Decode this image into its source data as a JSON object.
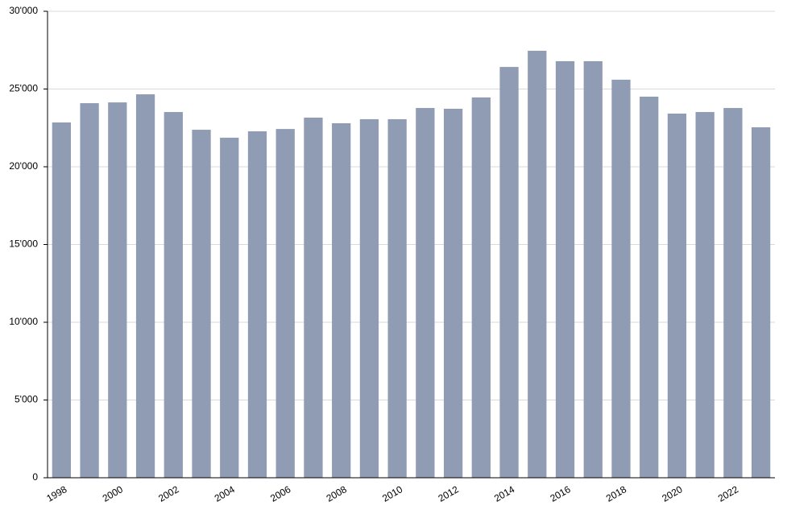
{
  "chart_data": {
    "type": "bar",
    "categories": [
      "1998",
      null,
      "2000",
      null,
      "2002",
      null,
      "2004",
      null,
      "2006",
      null,
      "2008",
      null,
      "2010",
      null,
      "2012",
      null,
      "2014",
      null,
      "2016",
      null,
      "2018",
      null,
      "2020",
      null,
      "2022",
      null
    ],
    "values": [
      22850,
      24090,
      24140,
      24660,
      23520,
      22380,
      21870,
      22280,
      22430,
      23160,
      22800,
      23060,
      23060,
      23780,
      23730,
      24460,
      26420,
      27460,
      26790,
      26790,
      25600,
      24510,
      23420,
      23520,
      23780,
      22540
    ],
    "color": "#8f9cb3",
    "ylim": [
      0,
      30000
    ],
    "yticks": [
      0,
      {
        "value": 5000,
        "label": "5'000"
      },
      {
        "value": 10000,
        "label": "10'000"
      },
      {
        "value": 15000,
        "label": "15'000"
      },
      {
        "value": 20000,
        "label": "20'000"
      },
      {
        "value": 25000,
        "label": "25'000"
      },
      {
        "value": 30000,
        "label": "30'000"
      }
    ],
    "grid": true
  }
}
